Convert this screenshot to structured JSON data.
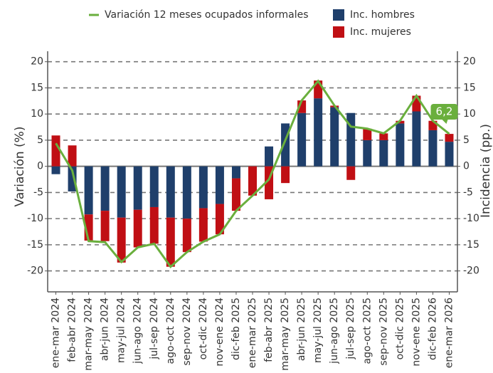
{
  "chart_data": {
    "type": "stacked-bar-line",
    "categories": [
      "ene-mar 2024",
      "feb-abr 2024",
      "mar-may 2024",
      "abr-jun 2024",
      "may-jul 2024",
      "jun-ago 2024",
      "jul-sep 2024",
      "ago-oct 2024",
      "sep-nov 2024",
      "oct-dic 2024",
      "nov-ene 2024",
      "dic-feb 2025",
      "ene-mar 2025",
      "feb-abr 2025",
      "mar-may 2025",
      "abr-jun 2025",
      "may-jul 2025",
      "jun-ago 2025",
      "jul-sep 2025",
      "ago-oct 2025",
      "sep-nov 2025",
      "oct-dic 2025",
      "nov-ene 2025",
      "dic-feb 2026",
      "ene-mar 2026"
    ],
    "series": [
      {
        "name": "Inc. hombres",
        "color": "#1f3f6b",
        "kind": "bar",
        "values": [
          -1.5,
          -4.8,
          -9.2,
          -8.5,
          -9.8,
          -8.3,
          -7.8,
          -9.8,
          -10.0,
          -8.0,
          -7.2,
          -2.3,
          0,
          3.8,
          8.2,
          10.2,
          13.0,
          11.3,
          10.2,
          5.0,
          5.0,
          8.2,
          10.5,
          6.9,
          4.7
        ]
      },
      {
        "name": "Inc. mujeres",
        "color": "#c00f14",
        "kind": "bar",
        "values": [
          5.9,
          4.0,
          -5.0,
          -5.8,
          -8.6,
          -7.2,
          -7.0,
          -9.4,
          -6.4,
          -6.4,
          -5.8,
          -6.2,
          -5.6,
          -6.3,
          -3.2,
          2.4,
          3.4,
          0.3,
          -2.6,
          2.2,
          1.3,
          0.5,
          3.0,
          1.8,
          1.5
        ]
      },
      {
        "name": "Variación 12 meses ocupados informales",
        "color": "#6aaf3d",
        "kind": "line",
        "values": [
          4.4,
          -0.8,
          -14.3,
          -14.5,
          -18.3,
          -15.5,
          -14.8,
          -19.2,
          -16.4,
          -14.4,
          -13.0,
          -8.5,
          -5.6,
          -2.5,
          5.0,
          12.6,
          16.3,
          11.6,
          7.6,
          7.2,
          6.3,
          8.7,
          13.5,
          8.7,
          6.2
        ]
      }
    ],
    "annotation": "6,2",
    "ylabel": "Variación (%)",
    "y2label": "Incidencia (pp.)",
    "ylim": [
      -24,
      22
    ],
    "yticks": [
      -20,
      -15,
      -10,
      -5,
      0,
      5,
      10,
      15,
      20
    ],
    "y2lim": [
      -24,
      22
    ],
    "y2ticks": [
      -20,
      -15,
      -10,
      -5,
      0,
      5,
      10,
      15,
      20
    ],
    "grid": true
  }
}
